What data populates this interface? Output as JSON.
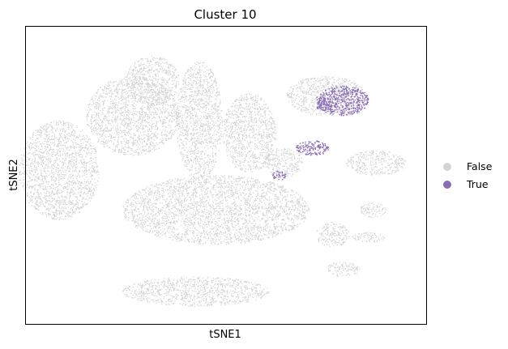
{
  "chart_data": {
    "type": "scatter",
    "title": "Cluster 10",
    "xlabel": "tSNE1",
    "ylabel": "tSNE2",
    "xlim": [
      -60,
      60
    ],
    "ylim": [
      -60,
      60
    ],
    "grid": false,
    "ticks": "none",
    "legend_placement": "right",
    "series": [
      {
        "name": "False",
        "color": "#d3d3d3",
        "regions": [
          {
            "cx": -50,
            "cy": 2,
            "rx": 12,
            "ry": 20
          },
          {
            "cx": -28,
            "cy": 24,
            "rx": 14,
            "ry": 16
          },
          {
            "cx": -22,
            "cy": 38,
            "rx": 8,
            "ry": 10
          },
          {
            "cx": -8,
            "cy": 22,
            "rx": 7,
            "ry": 24
          },
          {
            "cx": 7,
            "cy": 17,
            "rx": 8,
            "ry": 16
          },
          {
            "cx": -3,
            "cy": -14,
            "rx": 28,
            "ry": 14
          },
          {
            "cx": -9,
            "cy": -47,
            "rx": 22,
            "ry": 6
          },
          {
            "cx": 30,
            "cy": 32,
            "rx": 12,
            "ry": 8
          },
          {
            "cx": 17,
            "cy": 5,
            "rx": 6,
            "ry": 6
          },
          {
            "cx": 45,
            "cy": 5,
            "rx": 9,
            "ry": 5
          },
          {
            "cx": 32,
            "cy": -24,
            "rx": 5,
            "ry": 5
          },
          {
            "cx": 35,
            "cy": -38,
            "rx": 5,
            "ry": 3
          },
          {
            "cx": 44,
            "cy": -14,
            "rx": 4,
            "ry": 3
          },
          {
            "cx": 43,
            "cy": -25,
            "rx": 5,
            "ry": 2
          }
        ]
      },
      {
        "name": "True",
        "color": "#8a6bb4",
        "regions": [
          {
            "cx": 26,
            "cy": 11,
            "rx": 5,
            "ry": 3
          },
          {
            "cx": 35,
            "cy": 30,
            "rx": 8,
            "ry": 6
          },
          {
            "cx": 30,
            "cy": 28,
            "rx": 3,
            "ry": 2
          },
          {
            "cx": 16,
            "cy": 0,
            "rx": 2,
            "ry": 2
          }
        ]
      }
    ]
  }
}
